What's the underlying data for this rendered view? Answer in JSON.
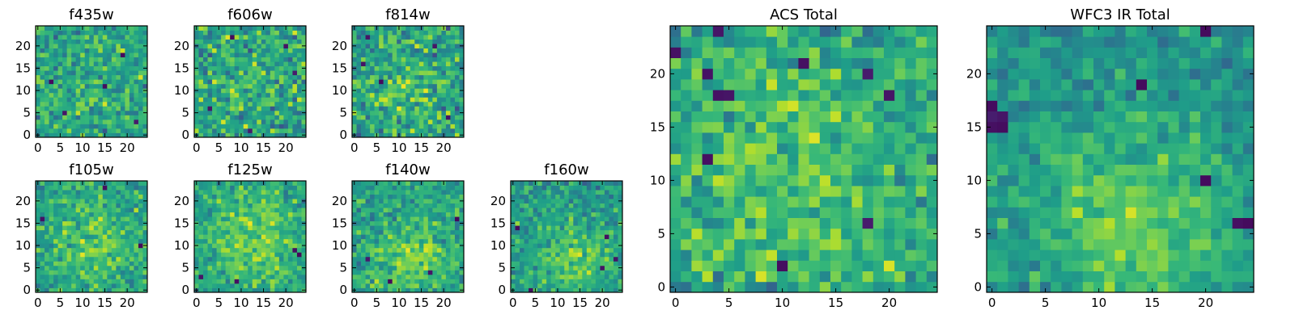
{
  "figure": {
    "description_free": true
  },
  "chart_data": [
    {
      "type": "heatmap",
      "title": "f435w",
      "grid": false,
      "colormap": "viridis",
      "nx": 25,
      "ny": 25,
      "xlim": [
        -0.5,
        24.5
      ],
      "ylim": [
        -0.5,
        24.5
      ],
      "xticks": [
        0,
        5,
        10,
        15,
        20
      ],
      "yticks": [
        0,
        5,
        10,
        15,
        20
      ],
      "xtick_labels": [
        "0",
        "5",
        "10",
        "15",
        "20"
      ],
      "ytick_labels": [
        "0",
        "5",
        "10",
        "15",
        "20"
      ],
      "texture": {
        "mean": 0.58,
        "spread": 0.24,
        "bright_center": [
          12,
          10
        ],
        "bright_amp": 0.04,
        "bright_radius": 8,
        "dark_spots": [
          [
            15,
            11
          ],
          [
            3,
            12
          ],
          [
            22,
            3
          ],
          [
            6,
            5
          ],
          [
            19,
            18
          ]
        ],
        "seed": 11
      }
    },
    {
      "type": "heatmap",
      "title": "f606w",
      "grid": false,
      "colormap": "viridis",
      "nx": 25,
      "ny": 25,
      "xlim": [
        -0.5,
        24.5
      ],
      "ylim": [
        -0.5,
        24.5
      ],
      "xticks": [
        0,
        5,
        10,
        15,
        20
      ],
      "yticks": [
        0,
        5,
        10,
        15,
        20
      ],
      "xtick_labels": [
        "0",
        "5",
        "10",
        "15",
        "20"
      ],
      "ytick_labels": [
        "0",
        "5",
        "10",
        "15",
        "20"
      ],
      "texture": {
        "mean": 0.58,
        "spread": 0.28,
        "bright_center": [
          12,
          12
        ],
        "bright_amp": 0.06,
        "bright_radius": 7,
        "dark_spots": [
          [
            20,
            20
          ],
          [
            3,
            6
          ],
          [
            12,
            1
          ],
          [
            22,
            14
          ],
          [
            8,
            22
          ]
        ],
        "seed": 23
      }
    },
    {
      "type": "heatmap",
      "title": "f814w",
      "grid": false,
      "colormap": "viridis",
      "nx": 25,
      "ny": 25,
      "xlim": [
        -0.5,
        24.5
      ],
      "ylim": [
        -0.5,
        24.5
      ],
      "xticks": [
        0,
        5,
        10,
        15,
        20
      ],
      "yticks": [
        0,
        5,
        10,
        15,
        20
      ],
      "xtick_labels": [
        "0",
        "5",
        "10",
        "15",
        "20"
      ],
      "ytick_labels": [
        "0",
        "5",
        "10",
        "15",
        "20"
      ],
      "texture": {
        "mean": 0.56,
        "spread": 0.28,
        "bright_center": [
          12,
          11
        ],
        "bright_amp": 0.12,
        "bright_radius": 7,
        "dark_spots": [
          [
            3,
            22
          ],
          [
            18,
            20
          ],
          [
            2,
            16
          ],
          [
            6,
            12
          ],
          [
            21,
            4
          ]
        ],
        "seed": 37
      }
    },
    {
      "type": "heatmap",
      "title": "f105w",
      "grid": false,
      "colormap": "viridis",
      "nx": 25,
      "ny": 25,
      "xlim": [
        -0.5,
        24.5
      ],
      "ylim": [
        -0.5,
        24.5
      ],
      "xticks": [
        0,
        5,
        10,
        15,
        20
      ],
      "yticks": [
        0,
        5,
        10,
        15,
        20
      ],
      "xtick_labels": [
        "0",
        "5",
        "10",
        "15",
        "20"
      ],
      "ytick_labels": [
        "0",
        "5",
        "10",
        "15",
        "20"
      ],
      "texture": {
        "mean": 0.56,
        "spread": 0.2,
        "bright_center": [
          13,
          10
        ],
        "bright_amp": 0.18,
        "bright_radius": 7,
        "dark_spots": [
          [
            1,
            16
          ],
          [
            23,
            10
          ],
          [
            15,
            23
          ]
        ],
        "seed": 41
      }
    },
    {
      "type": "heatmap",
      "title": "f125w",
      "grid": false,
      "colormap": "viridis",
      "nx": 25,
      "ny": 25,
      "xlim": [
        -0.5,
        24.5
      ],
      "ylim": [
        -0.5,
        24.5
      ],
      "xticks": [
        0,
        5,
        10,
        15,
        20
      ],
      "yticks": [
        0,
        5,
        10,
        15,
        20
      ],
      "xtick_labels": [
        "0",
        "5",
        "10",
        "15",
        "20"
      ],
      "ytick_labels": [
        "0",
        "5",
        "10",
        "15",
        "20"
      ],
      "texture": {
        "mean": 0.58,
        "spread": 0.2,
        "bright_center": [
          12,
          11
        ],
        "bright_amp": 0.2,
        "bright_radius": 7,
        "dark_spots": [
          [
            22,
            9
          ],
          [
            23,
            8
          ],
          [
            9,
            2
          ],
          [
            1,
            3
          ]
        ],
        "seed": 53
      }
    },
    {
      "type": "heatmap",
      "title": "f140w",
      "grid": false,
      "colormap": "viridis",
      "nx": 25,
      "ny": 25,
      "xlim": [
        -0.5,
        24.5
      ],
      "ylim": [
        -0.5,
        24.5
      ],
      "xticks": [
        0,
        5,
        10,
        15,
        20
      ],
      "yticks": [
        0,
        5,
        10,
        15,
        20
      ],
      "xtick_labels": [
        "0",
        "5",
        "10",
        "15",
        "20"
      ],
      "ytick_labels": [
        "0",
        "5",
        "10",
        "15",
        "20"
      ],
      "texture": {
        "mean": 0.58,
        "spread": 0.2,
        "bright_center": [
          13,
          7
        ],
        "bright_amp": 0.2,
        "bright_radius": 6,
        "dark_spots": [
          [
            23,
            16
          ],
          [
            3,
            7
          ],
          [
            17,
            4
          ],
          [
            8,
            2
          ]
        ],
        "seed": 67
      }
    },
    {
      "type": "heatmap",
      "title": "f160w",
      "grid": false,
      "colormap": "viridis",
      "nx": 25,
      "ny": 25,
      "xlim": [
        -0.5,
        24.5
      ],
      "ylim": [
        -0.5,
        24.5
      ],
      "xticks": [
        0,
        5,
        10,
        15,
        20
      ],
      "yticks": [
        0,
        5,
        10,
        15,
        20
      ],
      "xtick_labels": [
        "0",
        "5",
        "10",
        "15",
        "20"
      ],
      "ytick_labels": [
        "0",
        "5",
        "10",
        "15",
        "20"
      ],
      "texture": {
        "mean": 0.54,
        "spread": 0.2,
        "bright_center": [
          14,
          6
        ],
        "bright_amp": 0.22,
        "bright_radius": 6,
        "dark_spots": [
          [
            20,
            5
          ],
          [
            23,
            7
          ],
          [
            21,
            12
          ],
          [
            1,
            14
          ],
          [
            4,
            0
          ]
        ],
        "seed": 79
      }
    },
    {
      "type": "heatmap",
      "title": "ACS Total",
      "grid": false,
      "colormap": "viridis",
      "nx": 25,
      "ny": 25,
      "xlim": [
        -0.5,
        24.5
      ],
      "ylim": [
        -0.5,
        24.5
      ],
      "xticks": [
        0,
        5,
        10,
        15,
        20
      ],
      "yticks": [
        0,
        5,
        10,
        15,
        20
      ],
      "xtick_labels": [
        "0",
        "5",
        "10",
        "15",
        "20"
      ],
      "ytick_labels": [
        "0",
        "5",
        "10",
        "15",
        "20"
      ],
      "texture": {
        "mean": 0.58,
        "spread": 0.22,
        "bright_center": [
          11,
          10
        ],
        "bright_amp": 0.14,
        "bright_radius": 8,
        "dark_spots": [
          [
            4,
            24
          ],
          [
            0,
            22
          ],
          [
            3,
            20
          ],
          [
            12,
            21
          ],
          [
            18,
            20
          ],
          [
            4,
            18
          ],
          [
            5,
            18
          ],
          [
            3,
            12
          ],
          [
            20,
            18
          ],
          [
            10,
            2
          ],
          [
            18,
            6
          ]
        ],
        "seed": 97
      }
    },
    {
      "type": "heatmap",
      "title": "WFC3 IR Total",
      "grid": false,
      "colormap": "viridis",
      "nx": 25,
      "ny": 25,
      "xlim": [
        -0.5,
        24.5
      ],
      "ylim": [
        -0.5,
        24.5
      ],
      "xticks": [
        0,
        5,
        10,
        15,
        20
      ],
      "yticks": [
        0,
        5,
        10,
        15,
        20
      ],
      "xtick_labels": [
        "0",
        "5",
        "10",
        "15",
        "20"
      ],
      "ytick_labels": [
        "0",
        "5",
        "10",
        "15",
        "20"
      ],
      "texture": {
        "mean": 0.5,
        "spread": 0.16,
        "bright_center": [
          13,
          6
        ],
        "bright_amp": 0.26,
        "bright_radius": 7,
        "dark_spots": [
          [
            0,
            16
          ],
          [
            1,
            16
          ],
          [
            0,
            15
          ],
          [
            1,
            15
          ],
          [
            0,
            17
          ],
          [
            14,
            19
          ],
          [
            20,
            10
          ],
          [
            23,
            6
          ],
          [
            24,
            6
          ],
          [
            20,
            24
          ]
        ],
        "seed": 113
      }
    }
  ]
}
